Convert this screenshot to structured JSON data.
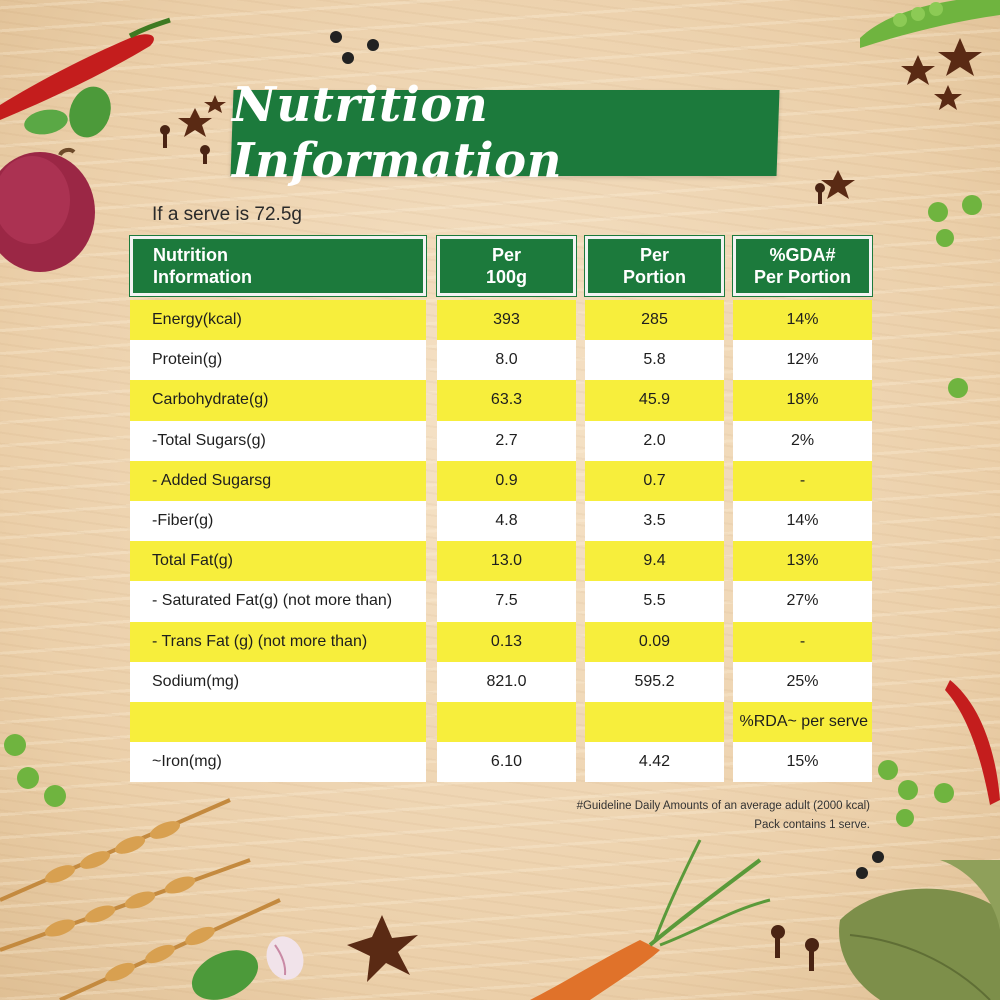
{
  "title": "Nutrition Information",
  "serve_note": "If a serve is 72.5g",
  "headers": {
    "nutrient": [
      "Nutrition",
      "Information"
    ],
    "per100g": [
      "Per",
      "100g"
    ],
    "portion": [
      "Per",
      "Portion"
    ],
    "gda": [
      "%GDA#",
      "Per Portion"
    ]
  },
  "rows": [
    {
      "name": "Energy(kcal)",
      "per100g": "393",
      "portion": "285",
      "gda": "14%"
    },
    {
      "name": "Protein(g)",
      "per100g": "8.0",
      "portion": "5.8",
      "gda": "12%"
    },
    {
      "name": "Carbohydrate(g)",
      "per100g": "63.3",
      "portion": "45.9",
      "gda": "18%"
    },
    {
      "name": "-Total Sugars(g)",
      "per100g": "2.7",
      "portion": "2.0",
      "gda": "2%"
    },
    {
      "name": "- Added Sugarsg",
      "per100g": "0.9",
      "portion": "0.7",
      "gda": "-"
    },
    {
      "name": "-Fiber(g)",
      "per100g": "4.8",
      "portion": "3.5",
      "gda": "14%"
    },
    {
      "name": "Total Fat(g)",
      "per100g": "13.0",
      "portion": "9.4",
      "gda": "13%"
    },
    {
      "name": "- Saturated Fat(g) (not more than)",
      "per100g": "7.5",
      "portion": "5.5",
      "gda": "27%"
    },
    {
      "name": "- Trans Fat (g) (not more than)",
      "per100g": "0.13",
      "portion": "0.09",
      "gda": "-"
    },
    {
      "name": "Sodium(mg)",
      "per100g": "821.0",
      "portion": "595.2",
      "gda": "25%"
    },
    {
      "name": "",
      "per100g": "",
      "portion": "",
      "gda": "%RDA~ per serve"
    },
    {
      "name": "~Iron(mg)",
      "per100g": "6.10",
      "portion": "4.42",
      "gda": "15%"
    }
  ],
  "footnotes": [
    "#Guideline Daily Amounts of an average adult (2000 kcal)",
    "Pack contains 1 serve."
  ],
  "colors": {
    "green": "#1c7a3c",
    "yellow": "#f7ee3c",
    "white": "#ffffff"
  },
  "decorations": [
    "red-chili-icon",
    "onion-icon",
    "basil-leaf-icon",
    "star-anise-icon",
    "clove-icon",
    "pea-pod-icon",
    "green-peas-icon",
    "wheat-icon",
    "carrot-icon",
    "bay-leaf-icon",
    "garlic-icon",
    "peppercorn-icon"
  ]
}
